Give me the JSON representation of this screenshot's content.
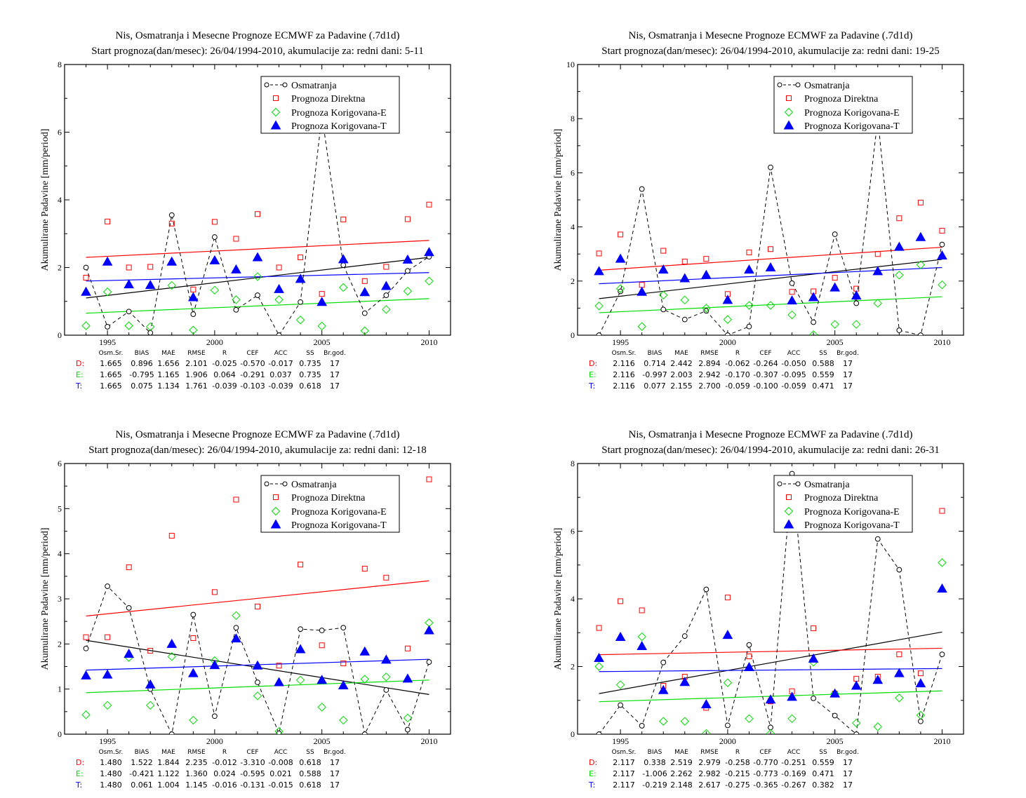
{
  "page": {
    "title_line1": "Nis, Osmatranja i Mesecne Prognoze ECMWF za Padavine (.7d1d)",
    "ylabel": "Akumulirane Padavine [mm/period]",
    "legend": [
      "Osmatranja",
      "Prognoza Direktna",
      "Prognoza Korigovana-E",
      "Prognoza Korigovana-T"
    ],
    "stats_headers": [
      "Osm.Sr.",
      "BIAS",
      "MAE",
      "RMSE",
      "R",
      "CEF",
      "ACC",
      "SS",
      "Br.god."
    ],
    "colors": {
      "obs": "#000000",
      "direct": "#ff0000",
      "corrE": "#00dd00",
      "corrT": "#0000ff"
    }
  },
  "chart_data": [
    {
      "type": "scatter",
      "title": "Start prognoza(dan/mesec): 26/04/1994-2010, akumulacije za: redni dani: 5-11",
      "ylim": [
        0,
        8
      ],
      "yticks": [
        0,
        2,
        4,
        6,
        8
      ],
      "x": [
        1994,
        1995,
        1996,
        1997,
        1998,
        1999,
        2000,
        2001,
        2002,
        2003,
        2004,
        2005,
        2006,
        2007,
        2008,
        2009,
        2010
      ],
      "xlim": [
        1993,
        2011
      ],
      "xticks_labeled": [
        1995,
        2000,
        2005,
        2010
      ],
      "series": [
        {
          "name": "Osmatranja",
          "values": [
            2.0,
            0.25,
            0.7,
            0.07,
            3.55,
            0.62,
            2.9,
            0.75,
            1.18,
            0.0,
            0.98,
            6.5,
            2.07,
            0.65,
            1.18,
            1.9,
            2.32
          ]
        },
        {
          "name": "Prognoza Direktna",
          "values": [
            1.7,
            3.36,
            2.0,
            2.02,
            3.3,
            1.35,
            3.35,
            2.85,
            3.58,
            2.0,
            2.3,
            1.22,
            3.42,
            1.6,
            2.02,
            3.43,
            3.86
          ]
        },
        {
          "name": "Prognoza Korigovana-E",
          "values": [
            0.28,
            1.28,
            0.28,
            0.25,
            1.47,
            0.15,
            1.33,
            1.05,
            1.73,
            1.05,
            0.45,
            0.27,
            1.41,
            0.13,
            0.76,
            1.3,
            1.6
          ]
        },
        {
          "name": "Prognoza Korigovana-T",
          "values": [
            1.28,
            2.17,
            1.5,
            1.48,
            2.17,
            1.12,
            2.21,
            1.94,
            2.3,
            1.36,
            1.66,
            0.98,
            2.24,
            1.27,
            1.45,
            2.23,
            2.45
          ]
        }
      ],
      "trends": {
        "obs": [
          1.1,
          2.3
        ],
        "direct": [
          2.3,
          2.8
        ],
        "corrE": [
          0.65,
          1.08
        ],
        "corrT": [
          1.6,
          1.85
        ]
      },
      "stats": [
        {
          "label": "D:",
          "values": [
            "1.665",
            "0.896",
            "1.656",
            "2.101",
            "-0.025",
            "-0.570",
            "-0.017",
            "0.735",
            "17"
          ]
        },
        {
          "label": "E:",
          "values": [
            "1.665",
            "-0.795",
            "1.165",
            "1.906",
            "0.064",
            "-0.291",
            "0.037",
            "0.735",
            "17"
          ]
        },
        {
          "label": "T:",
          "values": [
            "1.665",
            "0.075",
            "1.134",
            "1.761",
            "-0.039",
            "-0.103",
            "-0.039",
            "0.618",
            "17"
          ]
        }
      ]
    },
    {
      "type": "scatter",
      "title": "Start prognoza(dan/mesec): 26/04/1994-2010, akumulacije za: redni dani: 19-25",
      "ylim": [
        0,
        10
      ],
      "yticks": [
        0,
        2,
        4,
        6,
        8,
        10
      ],
      "x": [
        1994,
        1995,
        1996,
        1997,
        1998,
        1999,
        2000,
        2001,
        2002,
        2003,
        2004,
        2005,
        2006,
        2007,
        2008,
        2009,
        2010
      ],
      "xlim": [
        1993,
        2011
      ],
      "xticks_labeled": [
        1995,
        2000,
        2005,
        2010
      ],
      "series": [
        {
          "name": "Osmatranja",
          "values": [
            0.0,
            1.62,
            5.4,
            0.95,
            0.58,
            0.9,
            0.0,
            0.32,
            6.2,
            1.92,
            0.48,
            3.73,
            1.18,
            8.0,
            0.18,
            0.0,
            3.35
          ]
        },
        {
          "name": "Prognoza Direktna",
          "values": [
            3.02,
            3.72,
            1.86,
            3.12,
            2.72,
            2.82,
            1.52,
            3.06,
            3.18,
            1.6,
            1.62,
            2.12,
            1.72,
            3.0,
            4.32,
            4.9,
            3.86
          ]
        },
        {
          "name": "Prognoza Korigovana-E",
          "values": [
            1.08,
            1.72,
            0.32,
            1.48,
            1.3,
            1.0,
            0.58,
            1.1,
            1.1,
            0.75,
            0.02,
            0.4,
            0.4,
            1.18,
            2.22,
            2.6,
            1.86
          ]
        },
        {
          "name": "Prognoza Korigovana-T",
          "values": [
            2.36,
            2.82,
            1.6,
            2.42,
            2.1,
            2.22,
            1.3,
            2.42,
            2.5,
            1.28,
            1.4,
            1.76,
            1.46,
            2.36,
            3.26,
            3.62,
            2.94
          ]
        }
      ],
      "trends": {
        "obs": [
          1.35,
          2.8
        ],
        "direct": [
          2.4,
          3.25
        ],
        "corrE": [
          0.83,
          1.42
        ],
        "corrT": [
          1.9,
          2.5
        ]
      },
      "stats": [
        {
          "label": "D:",
          "values": [
            "2.116",
            "0.714",
            "2.442",
            "2.894",
            "-0.062",
            "-0.264",
            "-0.050",
            "0.588",
            "17"
          ]
        },
        {
          "label": "E:",
          "values": [
            "2.116",
            "-0.997",
            "2.003",
            "2.942",
            "-0.170",
            "-0.307",
            "-0.095",
            "0.559",
            "17"
          ]
        },
        {
          "label": "T:",
          "values": [
            "2.116",
            "0.077",
            "2.155",
            "2.700",
            "-0.059",
            "-0.100",
            "-0.059",
            "0.471",
            "17"
          ]
        }
      ]
    },
    {
      "type": "scatter",
      "title": "Start prognoza(dan/mesec): 26/04/1994-2010, akumulacije za: redni dani: 12-18",
      "ylim": [
        0,
        6
      ],
      "yticks": [
        0,
        1,
        2,
        3,
        4,
        5,
        6
      ],
      "x": [
        1994,
        1995,
        1996,
        1997,
        1998,
        1999,
        2000,
        2001,
        2002,
        2003,
        2004,
        2005,
        2006,
        2007,
        2008,
        2009,
        2010
      ],
      "xlim": [
        1993,
        2011
      ],
      "xticks_labeled": [
        1995,
        2000,
        2005,
        2010
      ],
      "series": [
        {
          "name": "Osmatranja",
          "values": [
            1.9,
            3.28,
            2.8,
            1.0,
            0.0,
            2.65,
            0.4,
            2.36,
            1.15,
            0.02,
            2.33,
            2.3,
            2.36,
            0.0,
            0.98,
            0.1,
            1.6
          ]
        },
        {
          "name": "Prognoza Direktna",
          "values": [
            2.15,
            2.15,
            3.7,
            1.85,
            4.4,
            2.13,
            3.15,
            5.2,
            2.83,
            1.52,
            3.76,
            1.97,
            1.57,
            3.67,
            3.47,
            1.9,
            5.65
          ]
        },
        {
          "name": "Prognoza Korigovana-E",
          "values": [
            0.43,
            0.64,
            1.7,
            0.64,
            1.72,
            0.31,
            1.63,
            2.63,
            0.85,
            0.06,
            1.2,
            0.6,
            0.31,
            1.22,
            1.27,
            0.36,
            2.47
          ]
        },
        {
          "name": "Prognoza Korigovana-T",
          "values": [
            1.3,
            1.32,
            1.78,
            1.1,
            2.0,
            1.35,
            1.53,
            2.12,
            1.52,
            1.15,
            1.88,
            1.2,
            1.08,
            1.83,
            1.65,
            1.23,
            2.3
          ]
        }
      ],
      "trends": {
        "obs": [
          2.08,
          0.88
        ],
        "direct": [
          2.62,
          3.4
        ],
        "corrE": [
          0.92,
          1.2
        ],
        "corrT": [
          1.42,
          1.66
        ]
      },
      "stats": [
        {
          "label": "D:",
          "values": [
            "1.480",
            "1.522",
            "1.844",
            "2.235",
            "-0.012",
            "-3.310",
            "-0.008",
            "0.618",
            "17"
          ]
        },
        {
          "label": "E:",
          "values": [
            "1.480",
            "-0.421",
            "1.122",
            "1.360",
            "0.024",
            "-0.595",
            "0.021",
            "0.588",
            "17"
          ]
        },
        {
          "label": "T:",
          "values": [
            "1.480",
            "0.061",
            "1.004",
            "1.145",
            "-0.016",
            "-0.131",
            "-0.015",
            "0.618",
            "17"
          ]
        }
      ]
    },
    {
      "type": "scatter",
      "title": "Start prognoza(dan/mesec): 26/04/1994-2010, akumulacije za: redni dani: 26-31",
      "ylim": [
        0,
        8
      ],
      "yticks": [
        0,
        2,
        4,
        6,
        8
      ],
      "x": [
        1994,
        1995,
        1996,
        1997,
        1998,
        1999,
        2000,
        2001,
        2002,
        2003,
        2004,
        2005,
        2006,
        2007,
        2008,
        2009,
        2010
      ],
      "xlim": [
        1993,
        2011
      ],
      "xticks_labeled": [
        1995,
        2000,
        2005,
        2010
      ],
      "series": [
        {
          "name": "Osmatranja",
          "values": [
            0.0,
            0.86,
            0.25,
            2.12,
            2.9,
            4.28,
            0.26,
            2.64,
            0.2,
            7.7,
            1.06,
            0.55,
            0.0,
            5.77,
            4.86,
            0.38,
            2.36
          ]
        },
        {
          "name": "Prognoza Direktna",
          "values": [
            3.14,
            3.93,
            3.66,
            1.43,
            1.7,
            0.78,
            4.04,
            2.3,
            0.97,
            1.27,
            3.13,
            1.2,
            1.64,
            1.7,
            2.36,
            1.8,
            6.6
          ]
        },
        {
          "name": "Prognoza Korigovana-E",
          "values": [
            2.0,
            1.46,
            2.88,
            0.38,
            0.38,
            0.02,
            1.52,
            0.46,
            0.02,
            0.46,
            2.13,
            1.2,
            0.33,
            0.22,
            1.07,
            0.56,
            5.07
          ]
        },
        {
          "name": "Prognoza Korigovana-T",
          "values": [
            2.25,
            2.87,
            2.6,
            1.3,
            1.54,
            0.88,
            2.93,
            1.98,
            1.02,
            1.1,
            2.23,
            1.2,
            1.43,
            1.6,
            1.8,
            1.5,
            4.3
          ]
        }
      ],
      "trends": {
        "obs": [
          1.2,
          3.02
        ],
        "direct": [
          2.35,
          2.54
        ],
        "corrE": [
          0.96,
          1.28
        ],
        "corrT": [
          1.85,
          1.94
        ]
      },
      "stats": [
        {
          "label": "D:",
          "values": [
            "2.117",
            "0.338",
            "2.519",
            "2.979",
            "-0.258",
            "-0.770",
            "-0.251",
            "0.559",
            "17"
          ]
        },
        {
          "label": "E:",
          "values": [
            "2.117",
            "-1.006",
            "2.262",
            "2.982",
            "-0.215",
            "-0.773",
            "-0.169",
            "0.471",
            "17"
          ]
        },
        {
          "label": "T:",
          "values": [
            "2.117",
            "-0.219",
            "2.148",
            "2.617",
            "-0.275",
            "-0.365",
            "-0.267",
            "0.382",
            "17"
          ]
        }
      ]
    }
  ]
}
